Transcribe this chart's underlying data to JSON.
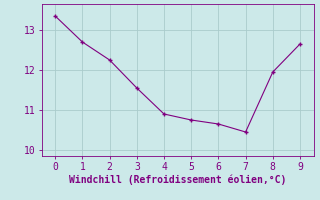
{
  "x": [
    0,
    1,
    2,
    3,
    4,
    5,
    6,
    7,
    8,
    9
  ],
  "y": [
    13.35,
    12.7,
    12.25,
    11.55,
    10.9,
    10.75,
    10.65,
    10.45,
    11.95,
    12.65
  ],
  "line_color": "#800080",
  "marker": "+",
  "marker_size": 3,
  "marker_linewidth": 1.0,
  "background_color": "#cce9e9",
  "grid_color": "#aacccc",
  "xlabel": "Windchill (Refroidissement éolien,°C)",
  "xlabel_color": "#800080",
  "tick_color": "#800080",
  "spine_color": "#800080",
  "xlim": [
    -0.5,
    9.5
  ],
  "ylim": [
    9.85,
    13.65
  ],
  "yticks": [
    10,
    11,
    12,
    13
  ],
  "xticks": [
    0,
    1,
    2,
    3,
    4,
    5,
    6,
    7,
    8,
    9
  ],
  "xlabel_fontsize": 7,
  "tick_fontsize": 7,
  "linewidth": 0.8
}
